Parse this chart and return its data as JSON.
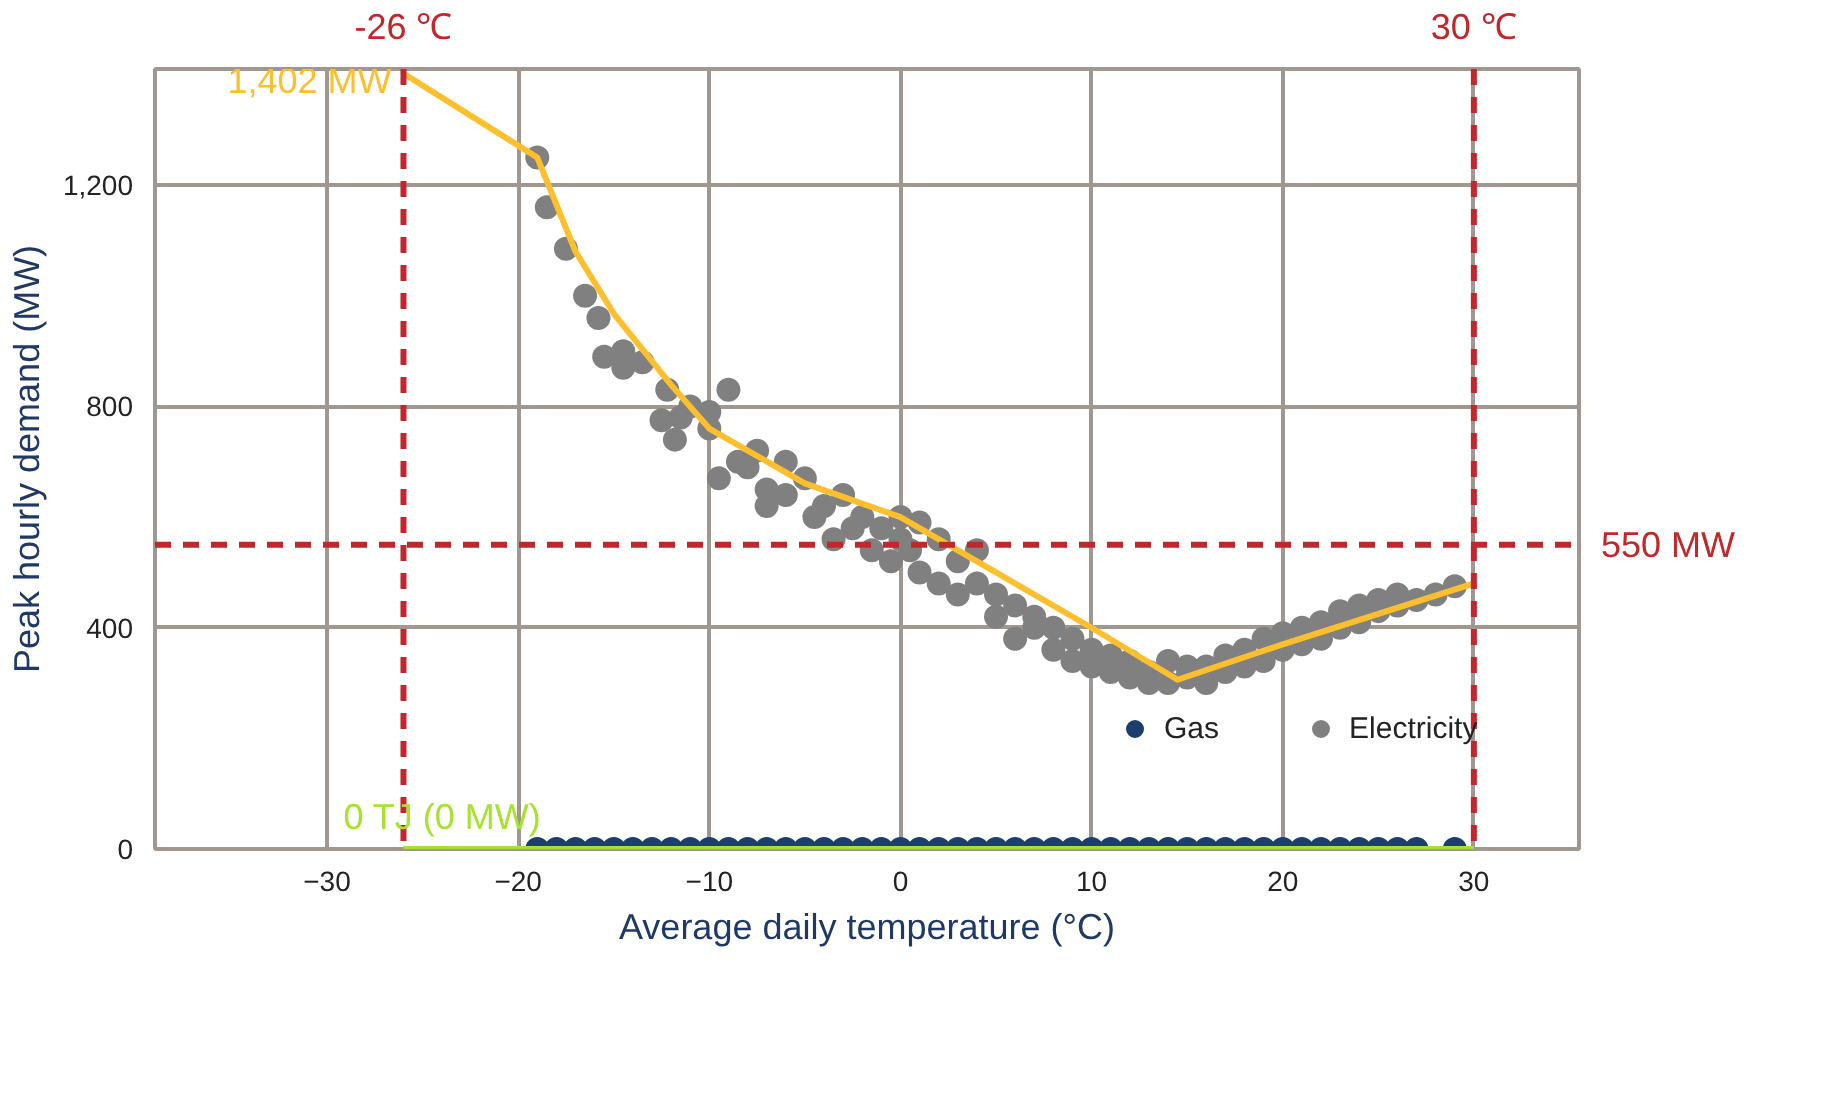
{
  "chart_data": {
    "type": "scatter",
    "xlabel": "Average daily temperature (°C)",
    "ylabel": "Peak hourly demand (MW)",
    "xlim": [
      -39,
      35.5
    ],
    "ylim": [
      0,
      1410
    ],
    "xticks": [
      -30,
      -20,
      -10,
      0,
      10,
      20,
      30
    ],
    "yticks": [
      0,
      400,
      800,
      {
        "value": 1200,
        "label": "1,200"
      }
    ],
    "grid": true,
    "legend": "bottom right",
    "marker": "circle",
    "series": [
      {
        "name": "Gas",
        "color": "#1c3f6e",
        "x": [
          -19,
          -18,
          -17,
          -16,
          -15,
          -14,
          -13,
          -12,
          -11,
          -10,
          -9,
          -8,
          -7,
          -6,
          -5,
          -4,
          -3,
          -2,
          -1,
          0,
          1,
          2,
          3,
          4,
          5,
          6,
          7,
          8,
          9,
          10,
          11,
          12,
          13,
          14,
          15,
          16,
          17,
          18,
          19,
          20,
          21,
          22,
          23,
          24,
          25,
          26,
          27,
          29
        ],
        "values": [
          0,
          0,
          0,
          0,
          0,
          0,
          0,
          0,
          0,
          0,
          0,
          0,
          0,
          0,
          0,
          0,
          0,
          0,
          0,
          0,
          0,
          0,
          0,
          0,
          0,
          0,
          0,
          0,
          0,
          0,
          0,
          0,
          0,
          0,
          0,
          0,
          0,
          0,
          0,
          0,
          0,
          0,
          0,
          0,
          0,
          0,
          0,
          0
        ]
      },
      {
        "name": "Electricity",
        "color": "#808080",
        "x": [
          -19,
          -18.5,
          -17.5,
          -16.5,
          -15.8,
          -15.5,
          -14.5,
          -14.5,
          -13.5,
          -12.2,
          -12.5,
          -11.5,
          -11,
          -10,
          -10,
          -11.8,
          -9,
          -8.5,
          -9.5,
          -8,
          -7.5,
          -7,
          -7,
          -6,
          -6,
          -5,
          -4.5,
          -4,
          -3,
          -3.5,
          -2.5,
          -2,
          -1.5,
          -1,
          -0.5,
          0,
          0,
          0.5,
          1,
          1,
          2,
          2,
          3,
          3,
          4,
          4,
          5,
          5,
          6,
          6,
          7,
          7,
          8,
          8,
          9,
          9,
          10,
          10,
          11,
          11,
          12,
          12,
          13,
          13,
          14,
          14,
          15,
          15,
          16,
          16,
          17,
          17,
          18,
          18,
          19,
          19,
          20,
          20,
          21,
          21,
          22,
          22,
          23,
          23,
          24,
          24,
          25,
          25,
          26,
          26,
          27,
          28,
          29
        ],
        "values": [
          1250,
          1160,
          1085,
          1000,
          960,
          890,
          900,
          870,
          880,
          830,
          775,
          780,
          800,
          790,
          760,
          740,
          830,
          700,
          670,
          690,
          720,
          650,
          620,
          640,
          700,
          670,
          600,
          620,
          640,
          560,
          580,
          600,
          540,
          580,
          520,
          560,
          600,
          540,
          590,
          500,
          560,
          480,
          520,
          460,
          480,
          540,
          460,
          420,
          440,
          380,
          420,
          400,
          400,
          360,
          380,
          340,
          360,
          330,
          350,
          320,
          340,
          310,
          320,
          300,
          340,
          300,
          310,
          330,
          300,
          330,
          320,
          350,
          330,
          360,
          340,
          380,
          360,
          390,
          370,
          400,
          380,
          410,
          400,
          430,
          410,
          440,
          430,
          450,
          440,
          460,
          450,
          460,
          475
        ]
      },
      {
        "type": "line",
        "marker": "none",
        "color": "#fdbf2d",
        "x": [
          -26,
          -19,
          -17,
          -15,
          -12,
          -10,
          -5,
          0,
          5,
          10,
          14.5,
          20,
          25,
          30
        ],
        "values": [
          1402,
          1250,
          1080,
          968,
          839,
          760,
          661,
          600,
          500,
          400,
          306,
          370,
          425,
          480
        ]
      },
      {
        "type": "line",
        "marker": "none",
        "color": "#a6e22e",
        "x": [
          -26,
          30
        ],
        "values": [
          0,
          0
        ]
      }
    ],
    "ref_lines": [
      {
        "axis": "x",
        "value": -26,
        "label": "-26 ℃",
        "color": "#c0282d",
        "line_style": "dashed"
      },
      {
        "axis": "x",
        "value": 30,
        "label": "30 ℃",
        "color": "#c0282d",
        "line_style": "dashed"
      },
      {
        "axis": "y",
        "value": 550,
        "label": "550 MW",
        "color": "#c0282d",
        "line_style": "dashed"
      }
    ],
    "annotations": [
      {
        "text": "1,402 MW",
        "x": -26,
        "y": 1402
      },
      {
        "text": "0 TJ (0 MW)",
        "x": -26,
        "y": 0
      }
    ]
  }
}
